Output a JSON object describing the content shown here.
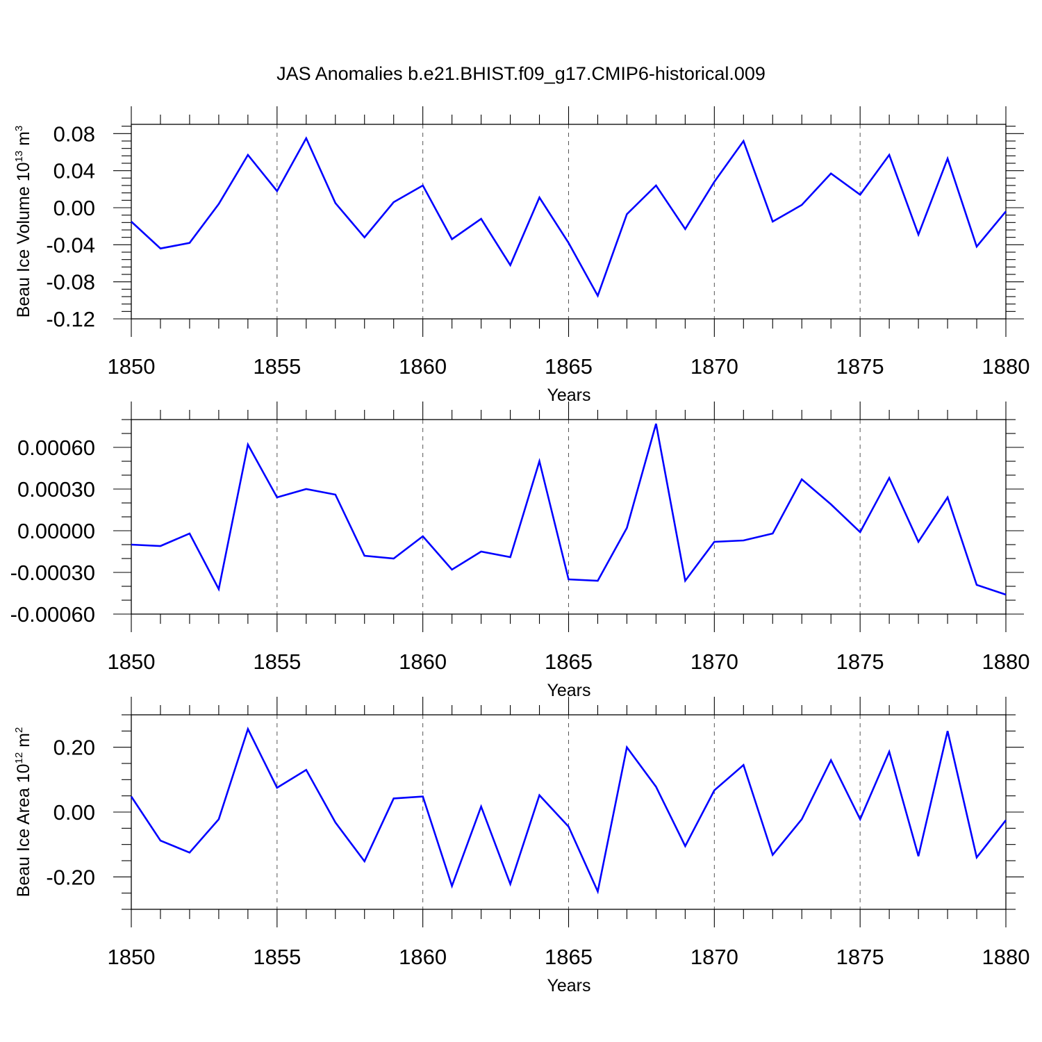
{
  "title": "JAS Anomalies b.e21.BHIST.f09_g17.CMIP6-historical.009",
  "colors": {
    "line": "#0000ff",
    "axis": "#000000",
    "grid": "#555555",
    "background": "#ffffff"
  },
  "chart_data": [
    {
      "type": "line",
      "xlabel": "Years",
      "ylabel": "Beau Ice Volume 10",
      "ylabel_sup": "13",
      "ylabel_unit": "m",
      "ylabel_unit_sup": "3",
      "xlim": [
        1850,
        1880
      ],
      "ylim": [
        -0.12,
        0.09
      ],
      "xticks": [
        1850,
        1855,
        1860,
        1865,
        1870,
        1875,
        1880
      ],
      "xtick_labels": [
        "1850",
        "1855",
        "1860",
        "1865",
        "1870",
        "1875",
        "1880"
      ],
      "yticks": [
        -0.12,
        -0.08,
        -0.04,
        0.0,
        0.04,
        0.08
      ],
      "ytick_labels": [
        "-0.12",
        "-0.08",
        "-0.04",
        "0.00",
        "0.04",
        "0.08"
      ],
      "y_minor_step": 0.008,
      "x": [
        1850,
        1851,
        1852,
        1853,
        1854,
        1855,
        1856,
        1857,
        1858,
        1859,
        1860,
        1861,
        1862,
        1863,
        1864,
        1865,
        1866,
        1867,
        1868,
        1869,
        1870,
        1871,
        1872,
        1873,
        1874,
        1875,
        1876,
        1877,
        1878,
        1879,
        1880
      ],
      "values": [
        -0.015,
        -0.044,
        -0.038,
        0.004,
        0.057,
        0.018,
        0.075,
        0.005,
        -0.032,
        0.006,
        0.024,
        -0.034,
        -0.012,
        -0.062,
        0.011,
        -0.038,
        -0.095,
        -0.007,
        0.024,
        -0.023,
        0.028,
        0.072,
        -0.015,
        0.003,
        0.037,
        0.014,
        0.057,
        -0.029,
        0.053,
        -0.042,
        -0.004
      ]
    },
    {
      "type": "line",
      "xlabel": "Years",
      "ylabel": "",
      "xlim": [
        1850,
        1880
      ],
      "ylim": [
        -0.0006,
        0.0008
      ],
      "xticks": [
        1850,
        1855,
        1860,
        1865,
        1870,
        1875,
        1880
      ],
      "xtick_labels": [
        "1850",
        "1855",
        "1860",
        "1865",
        "1870",
        "1875",
        "1880"
      ],
      "yticks": [
        -0.0006,
        -0.0003,
        0.0,
        0.0003,
        0.0006
      ],
      "ytick_labels": [
        "-0.00060",
        "-0.00030",
        "0.00000",
        "0.00030",
        "0.00060"
      ],
      "y_minor_step": 0.0001,
      "x": [
        1850,
        1851,
        1852,
        1853,
        1854,
        1855,
        1856,
        1857,
        1858,
        1859,
        1860,
        1861,
        1862,
        1863,
        1864,
        1865,
        1866,
        1867,
        1868,
        1869,
        1870,
        1871,
        1872,
        1873,
        1874,
        1875,
        1876,
        1877,
        1878,
        1879,
        1880
      ],
      "values": [
        -0.0001,
        -0.00011,
        -2e-05,
        -0.00042,
        0.00062,
        0.00024,
        0.0003,
        0.00026,
        -0.00018,
        -0.0002,
        -4e-05,
        -0.00028,
        -0.00015,
        -0.00019,
        0.0005,
        -0.00035,
        -0.00036,
        2e-05,
        0.00077,
        -0.00036,
        -8e-05,
        -7e-05,
        -2e-05,
        0.00037,
        0.00019,
        -1e-05,
        0.00038,
        -8e-05,
        0.00024,
        -0.00039,
        -0.00046
      ]
    },
    {
      "type": "line",
      "xlabel": "Years",
      "ylabel": "Beau Ice Area 10",
      "ylabel_sup": "12",
      "ylabel_unit": "m",
      "ylabel_unit_sup": "2",
      "xlim": [
        1850,
        1880
      ],
      "ylim": [
        -0.3,
        0.3
      ],
      "xticks": [
        1850,
        1855,
        1860,
        1865,
        1870,
        1875,
        1880
      ],
      "xtick_labels": [
        "1850",
        "1855",
        "1860",
        "1865",
        "1870",
        "1875",
        "1880"
      ],
      "yticks": [
        -0.2,
        0.0,
        0.2
      ],
      "ytick_labels": [
        "-0.20",
        "0.00",
        "0.20"
      ],
      "y_minor_step": 0.05,
      "x": [
        1850,
        1851,
        1852,
        1853,
        1854,
        1855,
        1856,
        1857,
        1858,
        1859,
        1860,
        1861,
        1862,
        1863,
        1864,
        1865,
        1866,
        1867,
        1868,
        1869,
        1870,
        1871,
        1872,
        1873,
        1874,
        1875,
        1876,
        1877,
        1878,
        1879,
        1880
      ],
      "values": [
        0.048,
        -0.088,
        -0.125,
        -0.022,
        0.256,
        0.075,
        0.13,
        -0.032,
        -0.152,
        0.042,
        0.048,
        -0.228,
        0.017,
        -0.222,
        0.052,
        -0.045,
        -0.245,
        0.2,
        0.078,
        -0.105,
        0.067,
        0.145,
        -0.132,
        -0.022,
        0.16,
        -0.022,
        0.186,
        -0.136,
        0.25,
        -0.14,
        -0.025
      ]
    }
  ]
}
